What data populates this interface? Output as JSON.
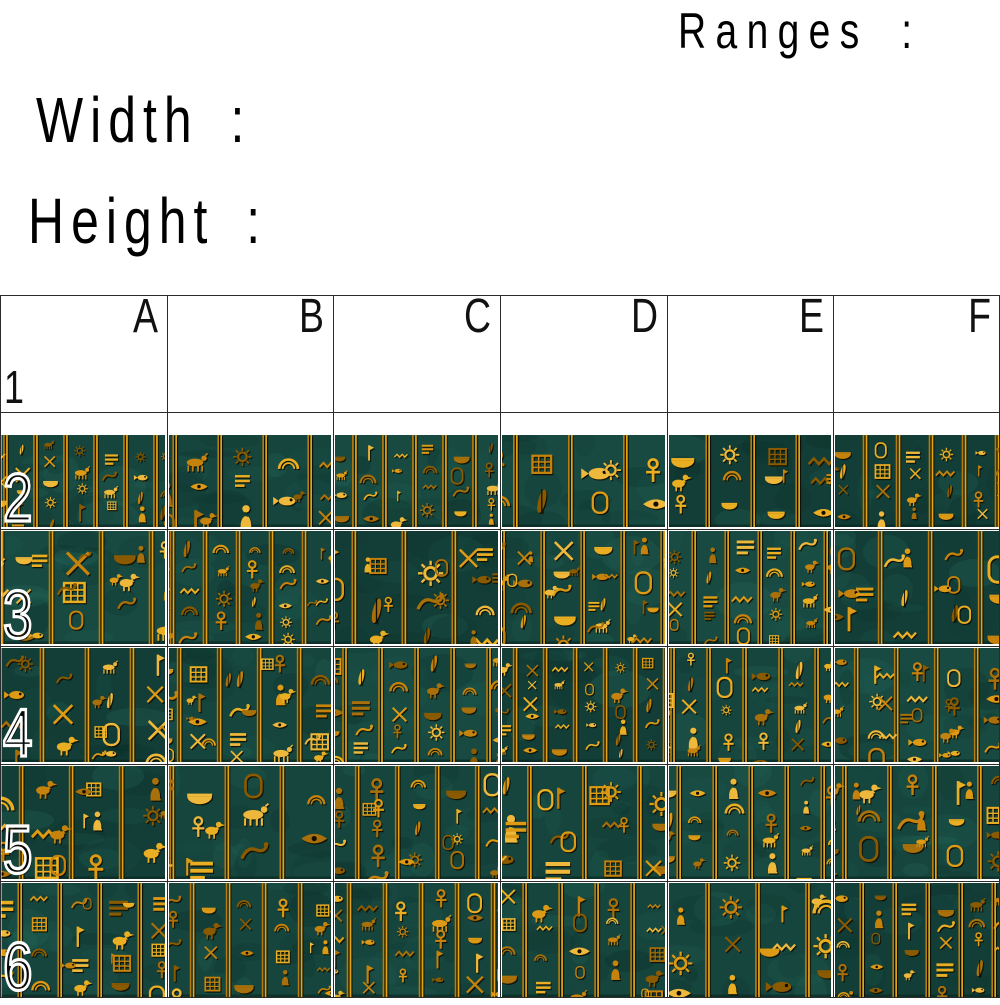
{
  "header": {
    "ranges_label": "Ranges :",
    "width_label": "Width :",
    "height_label": "Height :"
  },
  "grid": {
    "columns": [
      "A",
      "B",
      "C",
      "D",
      "E",
      "F"
    ],
    "rows": [
      "1",
      "2",
      "3",
      "4",
      "5",
      "6"
    ],
    "line_color": "#2b2b2b",
    "gap_color": "#ffffff"
  },
  "artwork": {
    "name": "egyptian-hieroglyphics-relief",
    "teal_base": [
      "#16453d",
      "#133e37",
      "#184a41"
    ],
    "teal_mottle": [
      "#0e352f",
      "#1d5850",
      "#246357",
      "#0b2e29"
    ],
    "gold_palette": [
      "#a86f07",
      "#c5830b",
      "#dc9a12",
      "#eaae24",
      "#edb83a",
      "#8a5a05"
    ],
    "separator_gold_dark": "#b67c0b",
    "separator_gold_light": "#e3a21a",
    "glyph_shadow": "#0f0801",
    "bottom_edge": "#08251f"
  }
}
